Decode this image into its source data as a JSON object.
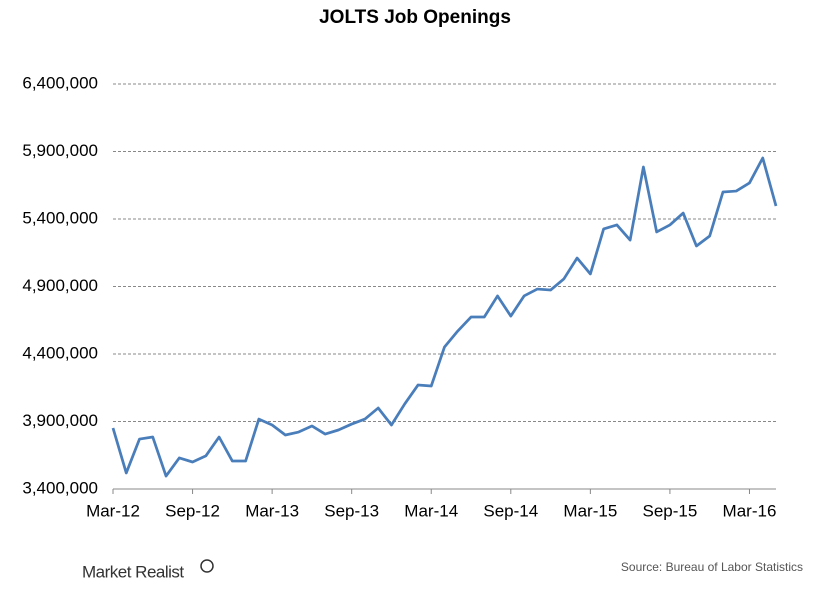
{
  "chart_data": {
    "type": "line",
    "title": "JOLTS Job Openings",
    "categories": [
      "Mar-12",
      null,
      null,
      null,
      null,
      null,
      "Sep-12",
      null,
      null,
      null,
      null,
      null,
      "Mar-13",
      null,
      null,
      null,
      null,
      null,
      "Sep-13",
      null,
      null,
      null,
      null,
      null,
      "Mar-14",
      null,
      null,
      null,
      null,
      null,
      "Sep-14",
      null,
      null,
      null,
      null,
      null,
      "Mar-15",
      null,
      null,
      null,
      null,
      null,
      "Sep-15",
      null,
      null,
      null,
      null,
      null,
      "Mar-16",
      null,
      null
    ],
    "series": [
      {
        "name": "Job Openings",
        "color": "#4a7ebb",
        "values": [
          3852000,
          3519000,
          3770000,
          3785000,
          3496000,
          3630000,
          3600000,
          3645000,
          3785000,
          3607000,
          3607000,
          3918000,
          3874000,
          3800000,
          3822000,
          3867000,
          3807000,
          3837000,
          3881000,
          3918000,
          4000000,
          3874000,
          4030000,
          4170000,
          4163000,
          4452000,
          4570000,
          4674000,
          4674000,
          4830000,
          4681000,
          4830000,
          4881000,
          4874000,
          4956000,
          5111000,
          4993000,
          5326000,
          5356000,
          5244000,
          5785000,
          5304000,
          5356000,
          5444000,
          5200000,
          5274000,
          5600000,
          5607000,
          5667000,
          5852000,
          5496000
        ]
      }
    ],
    "ylim": [
      3400000,
      6400000
    ],
    "yticks": [
      {
        "value": 3400000,
        "label": "3,400,000"
      },
      {
        "value": 3900000,
        "label": "3,900,000"
      },
      {
        "value": 4400000,
        "label": "4,400,000"
      },
      {
        "value": 4900000,
        "label": "4,900,000"
      },
      {
        "value": 5400000,
        "label": "5,400,000"
      },
      {
        "value": 5900000,
        "label": "5,900,000"
      },
      {
        "value": 6400000,
        "label": "6,400,000"
      }
    ],
    "grid": true,
    "source": "Source: Bureau of Labor Statistics",
    "brand": "Market Realist"
  }
}
